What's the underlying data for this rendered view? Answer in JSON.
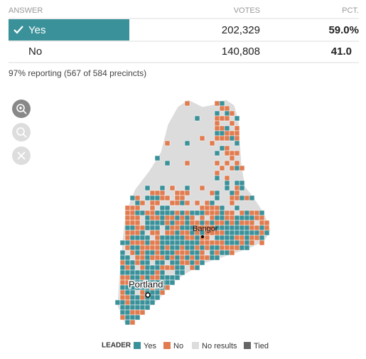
{
  "table": {
    "headers": [
      "ANSWER",
      "VOTES",
      "PCT."
    ],
    "rows": [
      [
        "Yes",
        "202,329",
        "59.0%"
      ],
      [
        "No",
        "140,808",
        "41.0"
      ]
    ]
  },
  "reporting": "97% reporting (567 of 584 precincts)",
  "map": {
    "labels": [
      "Bangor",
      "Portland"
    ]
  },
  "legend": {
    "title": "LEADER",
    "items": [
      {
        "label": "Yes",
        "color": "#3b9199"
      },
      {
        "label": "No",
        "color": "#e07c50"
      },
      {
        "label": "No results",
        "color": "#dcdcdc"
      },
      {
        "label": "Tied",
        "color": "#666666"
      }
    ]
  }
}
